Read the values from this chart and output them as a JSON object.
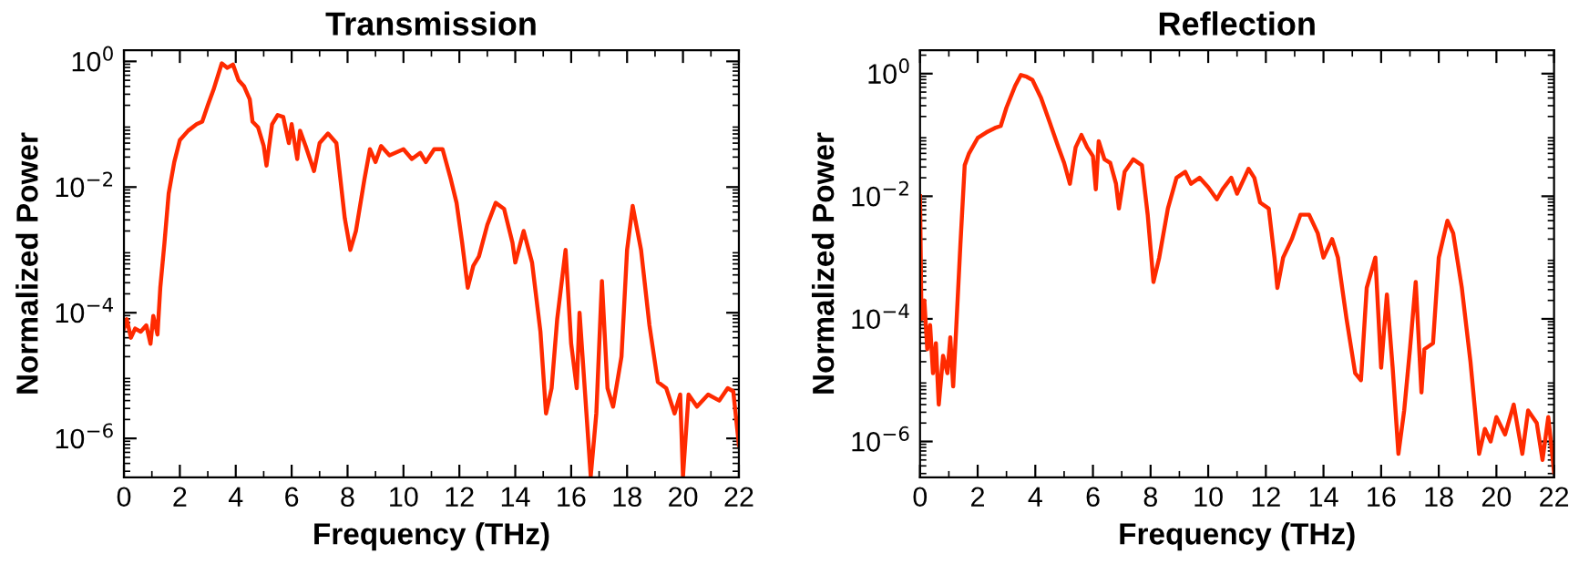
{
  "chart_data": [
    {
      "type": "line",
      "title": "Transmission",
      "xlabel": "Frequency (THz)",
      "ylabel": "Normalized Power",
      "log": "y",
      "xlim": [
        0,
        22
      ],
      "ylim": [
        2.4e-07,
        1.5
      ],
      "xticks": [
        0,
        2,
        4,
        6,
        8,
        10,
        12,
        14,
        16,
        18,
        20,
        22
      ],
      "yticks": [
        {
          "value": 1e-06,
          "label": "10$^{−6}$"
        },
        {
          "value": 0.0001,
          "label": "10$^{−4}$"
        },
        {
          "value": 0.01,
          "label": "10$^{−2}$"
        },
        {
          "value": 1,
          "label": "10$^{0}$"
        }
      ],
      "x": [
        0,
        0.1,
        0.25,
        0.4,
        0.6,
        0.8,
        0.95,
        1.05,
        1.2,
        1.3,
        1.45,
        1.6,
        1.8,
        2.0,
        2.3,
        2.6,
        2.8,
        3.0,
        3.2,
        3.5,
        3.7,
        3.9,
        4.1,
        4.3,
        4.5,
        4.6,
        4.8,
        5.0,
        5.1,
        5.3,
        5.5,
        5.7,
        5.9,
        6.0,
        6.2,
        6.3,
        6.5,
        6.8,
        7.0,
        7.3,
        7.6,
        7.9,
        8.1,
        8.3,
        8.6,
        8.8,
        9.0,
        9.2,
        9.5,
        10,
        10.3,
        10.6,
        10.8,
        11.1,
        11.4,
        11.7,
        11.9,
        12.1,
        12.3,
        12.5,
        12.7,
        13.0,
        13.3,
        13.6,
        13.9,
        14.0,
        14.3,
        14.6,
        14.9,
        15.1,
        15.3,
        15.5,
        15.8,
        16.0,
        16.2,
        16.3,
        16.5,
        16.7,
        16.9,
        17.1,
        17.3,
        17.5,
        17.8,
        18.0,
        18.2,
        18.5,
        18.8,
        19.1,
        19.4,
        19.7,
        19.9,
        20.0,
        20.2,
        20.5,
        20.9,
        21.3,
        21.6,
        21.8,
        22.0
      ],
      "series": [
        {
          "color": "#ff2a00",
          "values": [
            5.6e-05,
            7.9e-05,
            4e-05,
            5.6e-05,
            5e-05,
            6.3e-05,
            3.2e-05,
            8.9e-05,
            4.5e-05,
            0.00025,
            0.0013,
            0.0079,
            0.025,
            0.056,
            0.079,
            0.1,
            0.11,
            0.2,
            0.35,
            0.93,
            0.79,
            0.89,
            0.5,
            0.4,
            0.25,
            0.11,
            0.089,
            0.045,
            0.022,
            0.1,
            0.14,
            0.13,
            0.05,
            0.1,
            0.028,
            0.079,
            0.045,
            0.018,
            0.05,
            0.071,
            0.05,
            0.0032,
            0.001,
            0.002,
            0.013,
            0.04,
            0.025,
            0.045,
            0.032,
            0.04,
            0.028,
            0.035,
            0.025,
            0.04,
            0.04,
            0.013,
            0.0056,
            0.0013,
            0.00025,
            0.00056,
            0.00079,
            0.0025,
            0.0056,
            0.0045,
            0.0013,
            0.00063,
            0.002,
            0.00063,
            5e-05,
            2.5e-06,
            6.3e-06,
            7.9e-05,
            0.001,
            3.2e-05,
            6.3e-06,
            0.0001,
            5e-06,
            2.5e-07,
            2.5e-06,
            0.00032,
            6.3e-06,
            3.2e-06,
            2e-05,
            0.001,
            0.005,
            0.001,
            6.3e-05,
            7.9e-06,
            6.3e-06,
            2.5e-06,
            5e-06,
            2.5e-07,
            5e-06,
            3.2e-06,
            5e-06,
            4e-06,
            6.3e-06,
            5.6e-06,
            7.9e-07
          ]
        }
      ]
    },
    {
      "type": "line",
      "title": "Reflection",
      "xlabel": "Frequency (THz)",
      "ylabel": "Normalized Power",
      "log": "y",
      "xlim": [
        0,
        22
      ],
      "ylim": [
        2.6e-07,
        2.4
      ],
      "xticks": [
        0,
        2,
        4,
        6,
        8,
        10,
        12,
        14,
        16,
        18,
        20,
        22
      ],
      "yticks": [
        {
          "value": 1e-06,
          "label": "10$^{−6}$"
        },
        {
          "value": 0.0001,
          "label": "10$^{−4}$"
        },
        {
          "value": 0.01,
          "label": "10$^{−2}$"
        },
        {
          "value": 1,
          "label": "10$^{0}$"
        }
      ],
      "x": [
        0,
        0.05,
        0.15,
        0.25,
        0.35,
        0.45,
        0.55,
        0.65,
        0.8,
        0.95,
        1.05,
        1.15,
        1.25,
        1.4,
        1.55,
        1.7,
        2.0,
        2.3,
        2.6,
        2.8,
        3.0,
        3.3,
        3.5,
        3.7,
        3.9,
        4.2,
        4.5,
        4.8,
        5.0,
        5.2,
        5.4,
        5.6,
        5.8,
        6.0,
        6.1,
        6.2,
        6.4,
        6.6,
        6.8,
        6.9,
        7.1,
        7.4,
        7.7,
        7.9,
        8.1,
        8.3,
        8.6,
        8.9,
        9.2,
        9.4,
        9.7,
        10.0,
        10.3,
        10.5,
        10.8,
        11.0,
        11.4,
        11.6,
        11.8,
        12.1,
        12.3,
        12.4,
        12.6,
        12.9,
        13.2,
        13.5,
        13.8,
        14.0,
        14.3,
        14.5,
        14.8,
        15.1,
        15.3,
        15.5,
        15.8,
        16.0,
        16.2,
        16.4,
        16.6,
        16.8,
        17.0,
        17.2,
        17.4,
        17.5,
        17.8,
        18.0,
        18.3,
        18.5,
        18.8,
        19.1,
        19.4,
        19.6,
        19.8,
        20.0,
        20.3,
        20.6,
        20.9,
        21.1,
        21.4,
        21.6,
        21.8,
        22.0
      ],
      "series": [
        {
          "color": "#ff2a00",
          "values": [
            0.01,
            0.0001,
            0.0002,
            3.2e-05,
            7.9e-05,
            1.3e-05,
            4e-05,
            4e-06,
            2.5e-05,
            1.3e-05,
            5e-05,
            7.9e-06,
            6.3e-05,
            0.0016,
            0.032,
            0.05,
            0.089,
            0.11,
            0.13,
            0.14,
            0.28,
            0.63,
            0.95,
            0.89,
            0.79,
            0.4,
            0.16,
            0.063,
            0.035,
            0.016,
            0.063,
            0.1,
            0.063,
            0.045,
            0.013,
            0.079,
            0.04,
            0.035,
            0.016,
            0.0063,
            0.025,
            0.04,
            0.032,
            0.005,
            0.0004,
            0.001,
            0.0063,
            0.02,
            0.025,
            0.016,
            0.02,
            0.014,
            0.0089,
            0.013,
            0.02,
            0.011,
            0.028,
            0.02,
            0.0079,
            0.0063,
            0.001,
            0.00032,
            0.001,
            0.002,
            0.005,
            0.005,
            0.0025,
            0.001,
            0.002,
            0.001,
            0.0001,
            1.3e-05,
            1e-05,
            0.00032,
            0.001,
            1.6e-05,
            0.00025,
            1.6e-05,
            6.3e-07,
            3.2e-06,
            3.2e-05,
            0.0004,
            6.3e-06,
            3.2e-05,
            4e-05,
            0.001,
            0.004,
            0.0025,
            0.00032,
            2e-05,
            6.3e-07,
            1.6e-06,
            1e-06,
            2.5e-06,
            1.3e-06,
            4e-06,
            6.3e-07,
            3.2e-06,
            2e-06,
            5e-07,
            2.5e-06,
            3.2e-07
          ]
        }
      ]
    }
  ]
}
